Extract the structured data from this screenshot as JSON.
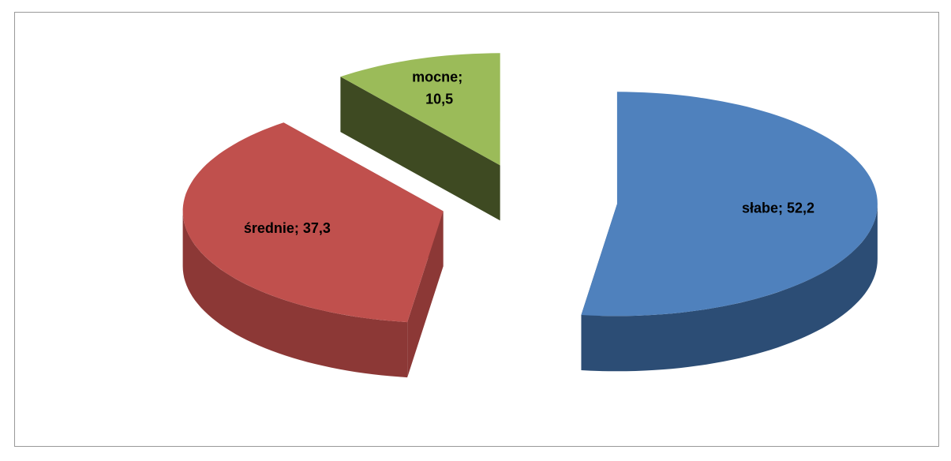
{
  "chart_data": {
    "type": "pie3d",
    "categories": [
      "słabe",
      "średnie",
      "mocne"
    ],
    "values": [
      52.2,
      37.3,
      10.5
    ],
    "value_labels": [
      "52,2",
      "37,3",
      "10,5"
    ],
    "label_separator": "; ",
    "colors": [
      "#4f81bd",
      "#c0504d",
      "#9bbb59"
    ],
    "side_colors": [
      "#2c4d75",
      "#8c3836",
      "#3e4a22"
    ]
  }
}
